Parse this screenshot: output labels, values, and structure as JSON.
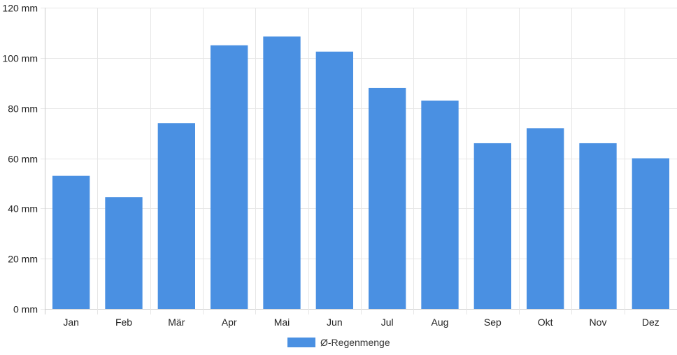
{
  "chart_data": {
    "type": "bar",
    "categories": [
      "Jan",
      "Feb",
      "Mär",
      "Apr",
      "Mai",
      "Jun",
      "Jul",
      "Aug",
      "Sep",
      "Okt",
      "Nov",
      "Dez"
    ],
    "series": [
      {
        "name": "Ø-Regenmenge",
        "values": [
          53,
          44.5,
          74,
          105,
          108.5,
          102.5,
          88,
          83,
          66,
          72,
          66,
          60
        ],
        "color": "#4a90e2"
      }
    ],
    "ylim": [
      0,
      120
    ],
    "yticks": [
      0,
      20,
      40,
      60,
      80,
      100,
      120
    ],
    "ytick_labels": [
      "0 mm",
      "20 mm",
      "40 mm",
      "60 mm",
      "80 mm",
      "100 mm",
      "120 mm"
    ],
    "grid": true,
    "legend_position": "bottom",
    "colors": {
      "grid": "#e6e6e6",
      "axis": "#cccccc",
      "bar": "#4a90e2"
    }
  }
}
